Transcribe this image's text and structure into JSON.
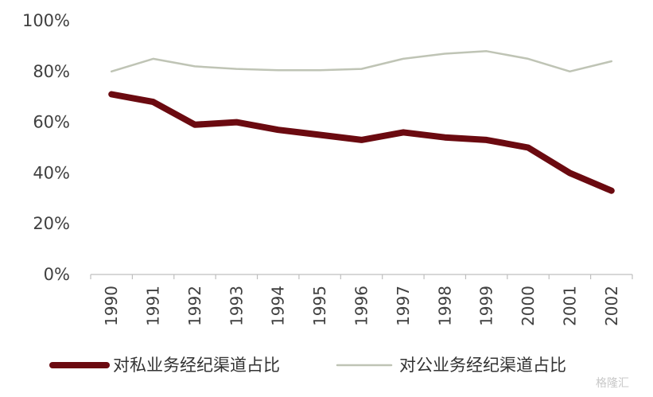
{
  "chart_data": {
    "type": "line",
    "title": "",
    "xlabel": "",
    "ylabel": "",
    "categories": [
      "1990",
      "1991",
      "1992",
      "1993",
      "1994",
      "1995",
      "1996",
      "1997",
      "1998",
      "1999",
      "2000",
      "2001",
      "2002"
    ],
    "ylim": [
      0,
      100
    ],
    "yticks": [
      "0%",
      "20%",
      "40%",
      "60%",
      "80%",
      "100%"
    ],
    "grid": false,
    "legend_position": "bottom",
    "series": [
      {
        "name": "对私业务经纪渠道占比",
        "color": "#6b0a10",
        "values": [
          71,
          68,
          59,
          60,
          57,
          55,
          53,
          56,
          54,
          53,
          50,
          40,
          33
        ]
      },
      {
        "name": "对公业务经纪渠道占比",
        "color": "#bfc4b5",
        "values": [
          80,
          85,
          82,
          81,
          80.5,
          80.5,
          81,
          85,
          87,
          88,
          85,
          80,
          84
        ]
      }
    ]
  },
  "watermark": {
    "text": "格隆汇"
  }
}
